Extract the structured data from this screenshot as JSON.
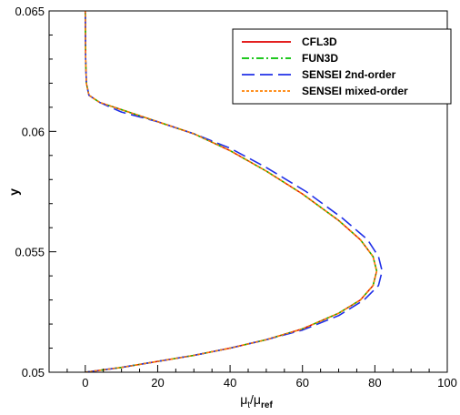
{
  "chart_data": {
    "type": "line",
    "title": "",
    "xlabel": "μt/μref",
    "xlabel_main": "μ",
    "xlabel_sub1": "t",
    "xlabel_slash": "/μ",
    "xlabel_sub2": "ref",
    "ylabel": "y",
    "xlim": [
      -10,
      100
    ],
    "ylim": [
      0.05,
      0.065
    ],
    "xticks": [
      0,
      20,
      40,
      60,
      80,
      100
    ],
    "xtick_labels": [
      "0",
      "20",
      "40",
      "60",
      "80",
      "100"
    ],
    "yticks": [
      0.05,
      0.055,
      0.06,
      0.065
    ],
    "ytick_labels": [
      "0.05",
      "0.055",
      "0.06",
      "0.065"
    ],
    "grid": false,
    "legend_position": "top-right",
    "series": [
      {
        "name": "CFL3D",
        "color": "#e00000",
        "style": "solid",
        "points": [
          [
            0,
            0.05
          ],
          [
            5,
            0.0501
          ],
          [
            10,
            0.0502
          ],
          [
            20,
            0.05045
          ],
          [
            30,
            0.0507
          ],
          [
            40,
            0.051
          ],
          [
            50,
            0.05135
          ],
          [
            60,
            0.0518
          ],
          [
            70,
            0.05245
          ],
          [
            76,
            0.053
          ],
          [
            79.5,
            0.0536
          ],
          [
            80.5,
            0.0542
          ],
          [
            79.5,
            0.0548
          ],
          [
            76,
            0.0555
          ],
          [
            70,
            0.0563
          ],
          [
            60,
            0.0574
          ],
          [
            50,
            0.05835
          ],
          [
            40,
            0.0592
          ],
          [
            30,
            0.0599
          ],
          [
            20,
            0.0604
          ],
          [
            10,
            0.0609
          ],
          [
            4,
            0.0612
          ],
          [
            1,
            0.0615
          ],
          [
            0.3,
            0.062
          ],
          [
            0.1,
            0.063
          ],
          [
            0,
            0.065
          ]
        ]
      },
      {
        "name": "FUN3D",
        "color": "#00c000",
        "style": "dashdot",
        "points": [
          [
            0,
            0.05
          ],
          [
            5,
            0.0501
          ],
          [
            10,
            0.0502
          ],
          [
            20,
            0.05045
          ],
          [
            30,
            0.0507
          ],
          [
            40,
            0.051
          ],
          [
            50,
            0.05135
          ],
          [
            60,
            0.0518
          ],
          [
            70,
            0.05245
          ],
          [
            76,
            0.053
          ],
          [
            79.5,
            0.0536
          ],
          [
            80.5,
            0.0542
          ],
          [
            79.5,
            0.0548
          ],
          [
            76,
            0.0555
          ],
          [
            70,
            0.0563
          ],
          [
            60,
            0.0574
          ],
          [
            50,
            0.05835
          ],
          [
            40,
            0.0592
          ],
          [
            30,
            0.0599
          ],
          [
            20,
            0.0604
          ],
          [
            10,
            0.0609
          ],
          [
            4,
            0.0612
          ],
          [
            1,
            0.0615
          ],
          [
            0.3,
            0.062
          ],
          [
            0.1,
            0.063
          ],
          [
            0,
            0.065
          ]
        ]
      },
      {
        "name": "SENSEI 2nd-order",
        "color": "#2030e8",
        "style": "dashed",
        "points": [
          [
            0,
            0.05
          ],
          [
            5,
            0.0501
          ],
          [
            10,
            0.0502
          ],
          [
            20,
            0.05045
          ],
          [
            30,
            0.0507
          ],
          [
            40,
            0.051
          ],
          [
            50,
            0.05135
          ],
          [
            60,
            0.05175
          ],
          [
            70,
            0.05235
          ],
          [
            77,
            0.053
          ],
          [
            81,
            0.0536
          ],
          [
            82,
            0.0542
          ],
          [
            81,
            0.0548
          ],
          [
            78,
            0.0555
          ],
          [
            71,
            0.0564
          ],
          [
            61,
            0.0575
          ],
          [
            50,
            0.0585
          ],
          [
            40,
            0.0593
          ],
          [
            30,
            0.0599
          ],
          [
            20,
            0.0604
          ],
          [
            10,
            0.0608
          ],
          [
            4,
            0.0612
          ],
          [
            1,
            0.0615
          ],
          [
            0.3,
            0.062
          ],
          [
            0.1,
            0.063
          ],
          [
            0,
            0.065
          ]
        ]
      },
      {
        "name": "SENSEI mixed-order",
        "color": "#ff8000",
        "style": "dotted",
        "points": [
          [
            0,
            0.05
          ],
          [
            5,
            0.0501
          ],
          [
            10,
            0.0502
          ],
          [
            20,
            0.05045
          ],
          [
            30,
            0.0507
          ],
          [
            40,
            0.051
          ],
          [
            50,
            0.05135
          ],
          [
            60,
            0.0518
          ],
          [
            70,
            0.05245
          ],
          [
            76,
            0.053
          ],
          [
            79.5,
            0.0536
          ],
          [
            80.5,
            0.0542
          ],
          [
            79.5,
            0.0548
          ],
          [
            76,
            0.0555
          ],
          [
            70,
            0.0563
          ],
          [
            60,
            0.0574
          ],
          [
            50,
            0.05835
          ],
          [
            40,
            0.0592
          ],
          [
            30,
            0.0599
          ],
          [
            20,
            0.0604
          ],
          [
            10,
            0.0609
          ],
          [
            4,
            0.0612
          ],
          [
            1,
            0.0615
          ],
          [
            0.3,
            0.062
          ],
          [
            0.1,
            0.063
          ],
          [
            0,
            0.065
          ]
        ]
      }
    ]
  }
}
